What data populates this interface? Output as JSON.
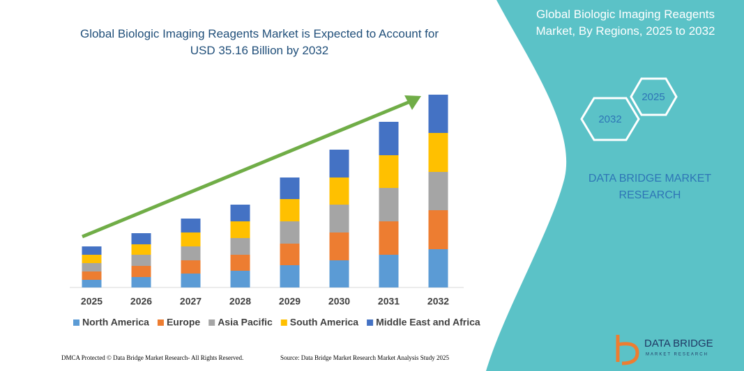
{
  "chart_data": {
    "type": "stacked-bar",
    "title": "Global Biologic Imaging Reagents Market is Expected to Account for USD 35.16 Billion by 2032",
    "categories": [
      "2025",
      "2026",
      "2027",
      "2028",
      "2029",
      "2030",
      "2031",
      "2032"
    ],
    "series": [
      {
        "name": "North America",
        "color": "#5b9bd5",
        "values": [
          11,
          15,
          20,
          24,
          32,
          39,
          47,
          55
        ]
      },
      {
        "name": "Europe",
        "color": "#ed7d31",
        "values": [
          12,
          16,
          19,
          23,
          31,
          40,
          48,
          56
        ]
      },
      {
        "name": "Asia Pacific",
        "color": "#a5a5a5",
        "values": [
          12,
          16,
          20,
          24,
          32,
          40,
          48,
          55
        ]
      },
      {
        "name": "South America",
        "color": "#ffc000",
        "values": [
          12,
          15,
          20,
          24,
          32,
          39,
          47,
          56
        ]
      },
      {
        "name": "Middle East and Africa",
        "color": "#4472c4",
        "values": [
          12,
          16,
          20,
          24,
          31,
          40,
          48,
          55
        ]
      }
    ]
  },
  "panel": {
    "title": "Global Biologic Imaging Reagents Market, By Regions, 2025 to 2032",
    "hex_right": "2025",
    "hex_left": "2032",
    "brand": "DATA BRIDGE MARKET RESEARCH"
  },
  "footer": {
    "left": "DMCA Protected © Data Bridge Market Research- All Rights Reserved.",
    "right": "Source: Data Bridge Market Research Market Analysis Study 2025"
  },
  "logo": {
    "name": "DATA BRIDGE",
    "tagline": "MARKET RESEARCH"
  }
}
